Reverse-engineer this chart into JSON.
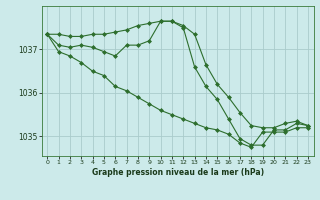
{
  "title": "Graphe pression niveau de la mer (hPa)",
  "background_color": "#cceaea",
  "grid_color": "#aacccc",
  "line_color": "#2d6e2d",
  "xlim": [
    -0.5,
    23.5
  ],
  "ylim": [
    1034.55,
    1038.0
  ],
  "xticks": [
    0,
    1,
    2,
    3,
    4,
    5,
    6,
    7,
    8,
    9,
    10,
    11,
    12,
    13,
    14,
    15,
    16,
    17,
    18,
    19,
    20,
    21,
    22,
    23
  ],
  "yticks": [
    1035,
    1036,
    1037
  ],
  "series1": [
    1037.35,
    1037.35,
    1037.3,
    1037.3,
    1037.35,
    1037.35,
    1037.4,
    1037.45,
    1037.55,
    1037.6,
    1037.65,
    1037.65,
    1037.55,
    1037.35,
    1036.65,
    1036.2,
    1035.9,
    1035.55,
    1035.25,
    1035.2,
    1035.2,
    1035.3,
    1035.35,
    1035.25
  ],
  "series2": [
    1037.35,
    1037.1,
    1037.05,
    1037.1,
    1037.05,
    1036.95,
    1036.85,
    1037.1,
    1037.1,
    1037.2,
    1037.65,
    1037.65,
    1037.5,
    1036.6,
    1036.15,
    1035.85,
    1035.4,
    1034.95,
    1034.8,
    1034.8,
    1035.15,
    1035.15,
    1035.3,
    1035.25
  ],
  "series3": [
    1037.35,
    1036.95,
    1036.85,
    1036.7,
    1036.5,
    1036.4,
    1036.15,
    1036.05,
    1035.9,
    1035.75,
    1035.6,
    1035.5,
    1035.4,
    1035.3,
    1035.2,
    1035.15,
    1035.05,
    1034.85,
    1034.75,
    1035.1,
    1035.1,
    1035.1,
    1035.2,
    1035.2
  ]
}
